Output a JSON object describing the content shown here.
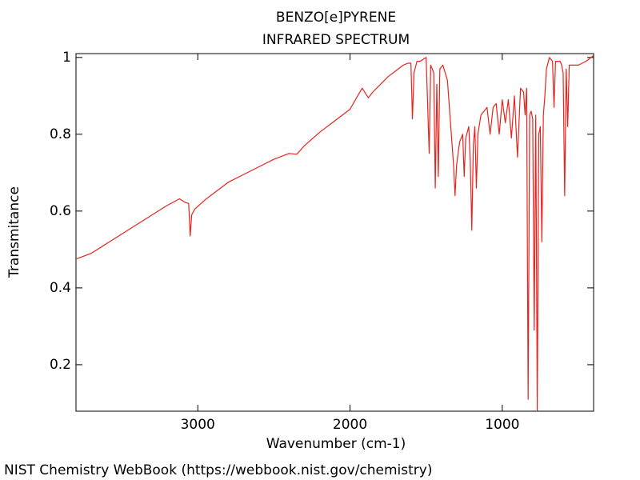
{
  "chart_data": {
    "type": "line",
    "title": "BENZO[e]PYRENE",
    "subtitle": "INFRARED SPECTRUM",
    "xlabel": "Wavenumber (cm-1)",
    "ylabel": "Transmitance",
    "source": "NIST Chemistry WebBook (https://webbook.nist.gov/chemistry)",
    "xlim": [
      3800,
      400
    ],
    "ylim": [
      0.079,
      1.01
    ],
    "xticks": [
      3000,
      2000,
      1000
    ],
    "yticks": [
      0.2,
      0.4,
      0.6,
      0.8,
      1
    ],
    "x": [
      3800,
      3700,
      3600,
      3500,
      3400,
      3300,
      3200,
      3120,
      3080,
      3060,
      3050,
      3040,
      3020,
      2950,
      2900,
      2800,
      2700,
      2600,
      2500,
      2400,
      2350,
      2300,
      2200,
      2100,
      2000,
      1950,
      1920,
      1880,
      1850,
      1800,
      1750,
      1700,
      1650,
      1620,
      1600,
      1590,
      1580,
      1560,
      1540,
      1500,
      1480,
      1470,
      1450,
      1440,
      1430,
      1420,
      1410,
      1390,
      1360,
      1320,
      1310,
      1300,
      1280,
      1260,
      1250,
      1240,
      1220,
      1210,
      1200,
      1190,
      1180,
      1170,
      1160,
      1140,
      1100,
      1080,
      1060,
      1040,
      1020,
      1000,
      980,
      960,
      940,
      920,
      900,
      880,
      860,
      850,
      840,
      830,
      820,
      810,
      800,
      790,
      780,
      770,
      760,
      750,
      740,
      730,
      720,
      710,
      690,
      670,
      660,
      650,
      620,
      610,
      600,
      590,
      580,
      570,
      560,
      500,
      450,
      400
    ],
    "series": [
      {
        "color": "#e8231e",
        "values": [
          0.475,
          0.49,
          0.515,
          0.54,
          0.565,
          0.59,
          0.615,
          0.632,
          0.622,
          0.62,
          0.535,
          0.59,
          0.605,
          0.63,
          0.645,
          0.675,
          0.695,
          0.715,
          0.735,
          0.75,
          0.748,
          0.77,
          0.805,
          0.835,
          0.865,
          0.9,
          0.92,
          0.895,
          0.91,
          0.93,
          0.95,
          0.965,
          0.98,
          0.985,
          0.985,
          0.84,
          0.96,
          0.99,
          0.99,
          1.0,
          0.75,
          0.98,
          0.96,
          0.66,
          0.93,
          0.69,
          0.97,
          0.98,
          0.94,
          0.72,
          0.64,
          0.72,
          0.78,
          0.8,
          0.69,
          0.79,
          0.82,
          0.73,
          0.55,
          0.77,
          0.82,
          0.66,
          0.8,
          0.85,
          0.87,
          0.8,
          0.87,
          0.88,
          0.8,
          0.89,
          0.83,
          0.89,
          0.79,
          0.9,
          0.74,
          0.92,
          0.91,
          0.85,
          0.92,
          0.11,
          0.85,
          0.86,
          0.84,
          0.29,
          0.85,
          0.08,
          0.8,
          0.82,
          0.52,
          0.85,
          0.9,
          0.97,
          1.0,
          0.99,
          0.87,
          0.99,
          0.99,
          0.98,
          0.96,
          0.64,
          0.97,
          0.82,
          0.98,
          0.98,
          0.99,
          1.005
        ]
      }
    ]
  }
}
